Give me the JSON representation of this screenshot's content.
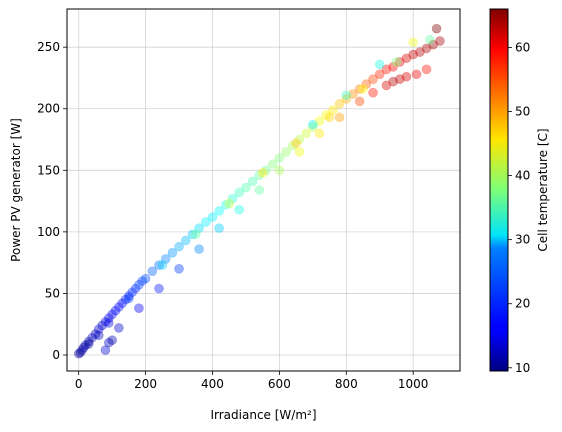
{
  "chart_data": {
    "type": "scatter",
    "title": "",
    "xlabel": "Irradiance [W/m²]",
    "ylabel": "Power PV generator [W]",
    "xlim": [
      -35,
      1140
    ],
    "ylim": [
      -13,
      281
    ],
    "xticks": [
      "0",
      "200",
      "400",
      "600",
      "800",
      "1000"
    ],
    "xtick_values": [
      0,
      200,
      400,
      600,
      800,
      1000
    ],
    "yticks": [
      "0",
      "50",
      "100",
      "150",
      "200",
      "250"
    ],
    "ytick_values": [
      0,
      50,
      100,
      150,
      200,
      250
    ],
    "grid": true,
    "marker_alpha": 0.4,
    "colormap": "jet",
    "colorbar": {
      "label": "Cell temperature [C]",
      "range": [
        9.5,
        66
      ],
      "ticks": [
        "10",
        "20",
        "30",
        "40",
        "50",
        "60"
      ],
      "tick_values": [
        10,
        20,
        30,
        40,
        50,
        60
      ]
    },
    "series": [
      {
        "x": [
          0,
          5,
          10,
          15,
          20,
          30,
          40,
          50,
          60,
          70,
          80,
          90,
          100,
          110,
          120,
          130,
          140,
          150,
          160,
          170,
          180,
          190,
          200,
          220,
          240,
          260,
          280,
          300,
          320,
          340,
          360,
          380,
          400,
          420,
          440,
          460,
          480,
          500,
          520,
          540,
          560,
          580,
          600,
          620,
          640,
          660,
          680,
          700,
          720,
          740,
          760,
          780,
          800,
          820,
          840,
          860,
          880,
          900,
          920,
          940,
          960,
          980,
          1000,
          1020,
          1040,
          1060,
          1080,
          30,
          60,
          90,
          150,
          250,
          350,
          450,
          550,
          650,
          750,
          850,
          950,
          1050,
          80,
          90,
          100,
          700,
          800,
          900,
          1000,
          1070,
          1040,
          1010,
          980,
          960,
          940,
          920,
          880,
          840,
          780,
          720,
          660,
          600,
          540,
          480,
          420,
          360,
          300,
          240,
          180,
          120
        ],
        "y": [
          1,
          2,
          4,
          6,
          8,
          11,
          14,
          17,
          21,
          24,
          27,
          30,
          33,
          36,
          39,
          42,
          45,
          48,
          51,
          54,
          57,
          60,
          62,
          68,
          73,
          78,
          83,
          88,
          93,
          98,
          103,
          108,
          112,
          117,
          122,
          127,
          132,
          136,
          141,
          146,
          150,
          155,
          160,
          165,
          170,
          175,
          180,
          185,
          190,
          195,
          199,
          204,
          208,
          212,
          216,
          220,
          224,
          228,
          232,
          234,
          238,
          241,
          244,
          246,
          249,
          252,
          255,
          9,
          16,
          26,
          46,
          73,
          98,
          123,
          148,
          172,
          193,
          216,
          238,
          256,
          4,
          10,
          12,
          187,
          211,
          236,
          254,
          265,
          232,
          228,
          226,
          224,
          222,
          219,
          213,
          206,
          193,
          180,
          165,
          150,
          134,
          118,
          103,
          86,
          70,
          54,
          38,
          22
        ],
        "c": [
          11,
          11,
          11,
          12,
          12,
          12,
          13,
          13,
          14,
          14,
          15,
          15,
          16,
          16,
          17,
          17,
          18,
          18,
          19,
          19,
          20,
          20,
          21,
          22,
          23,
          24,
          25,
          26,
          27,
          28,
          29,
          30,
          30,
          31,
          32,
          33,
          34,
          35,
          35,
          36,
          37,
          38,
          38,
          39,
          40,
          41,
          42,
          42,
          44,
          45,
          46,
          48,
          49,
          51,
          52,
          54,
          55,
          57,
          58,
          59,
          60,
          61,
          62,
          63,
          63,
          64,
          64,
          11,
          13,
          15,
          20,
          28,
          36,
          41,
          46,
          48,
          47,
          45,
          38,
          36,
          14,
          13,
          12,
          30,
          34,
          32,
          44,
          66,
          58,
          60,
          61,
          62,
          63,
          61,
          58,
          55,
          50,
          46,
          44,
          40,
          36,
          32,
          28,
          24,
          20,
          18,
          16,
          14
        ]
      }
    ]
  }
}
